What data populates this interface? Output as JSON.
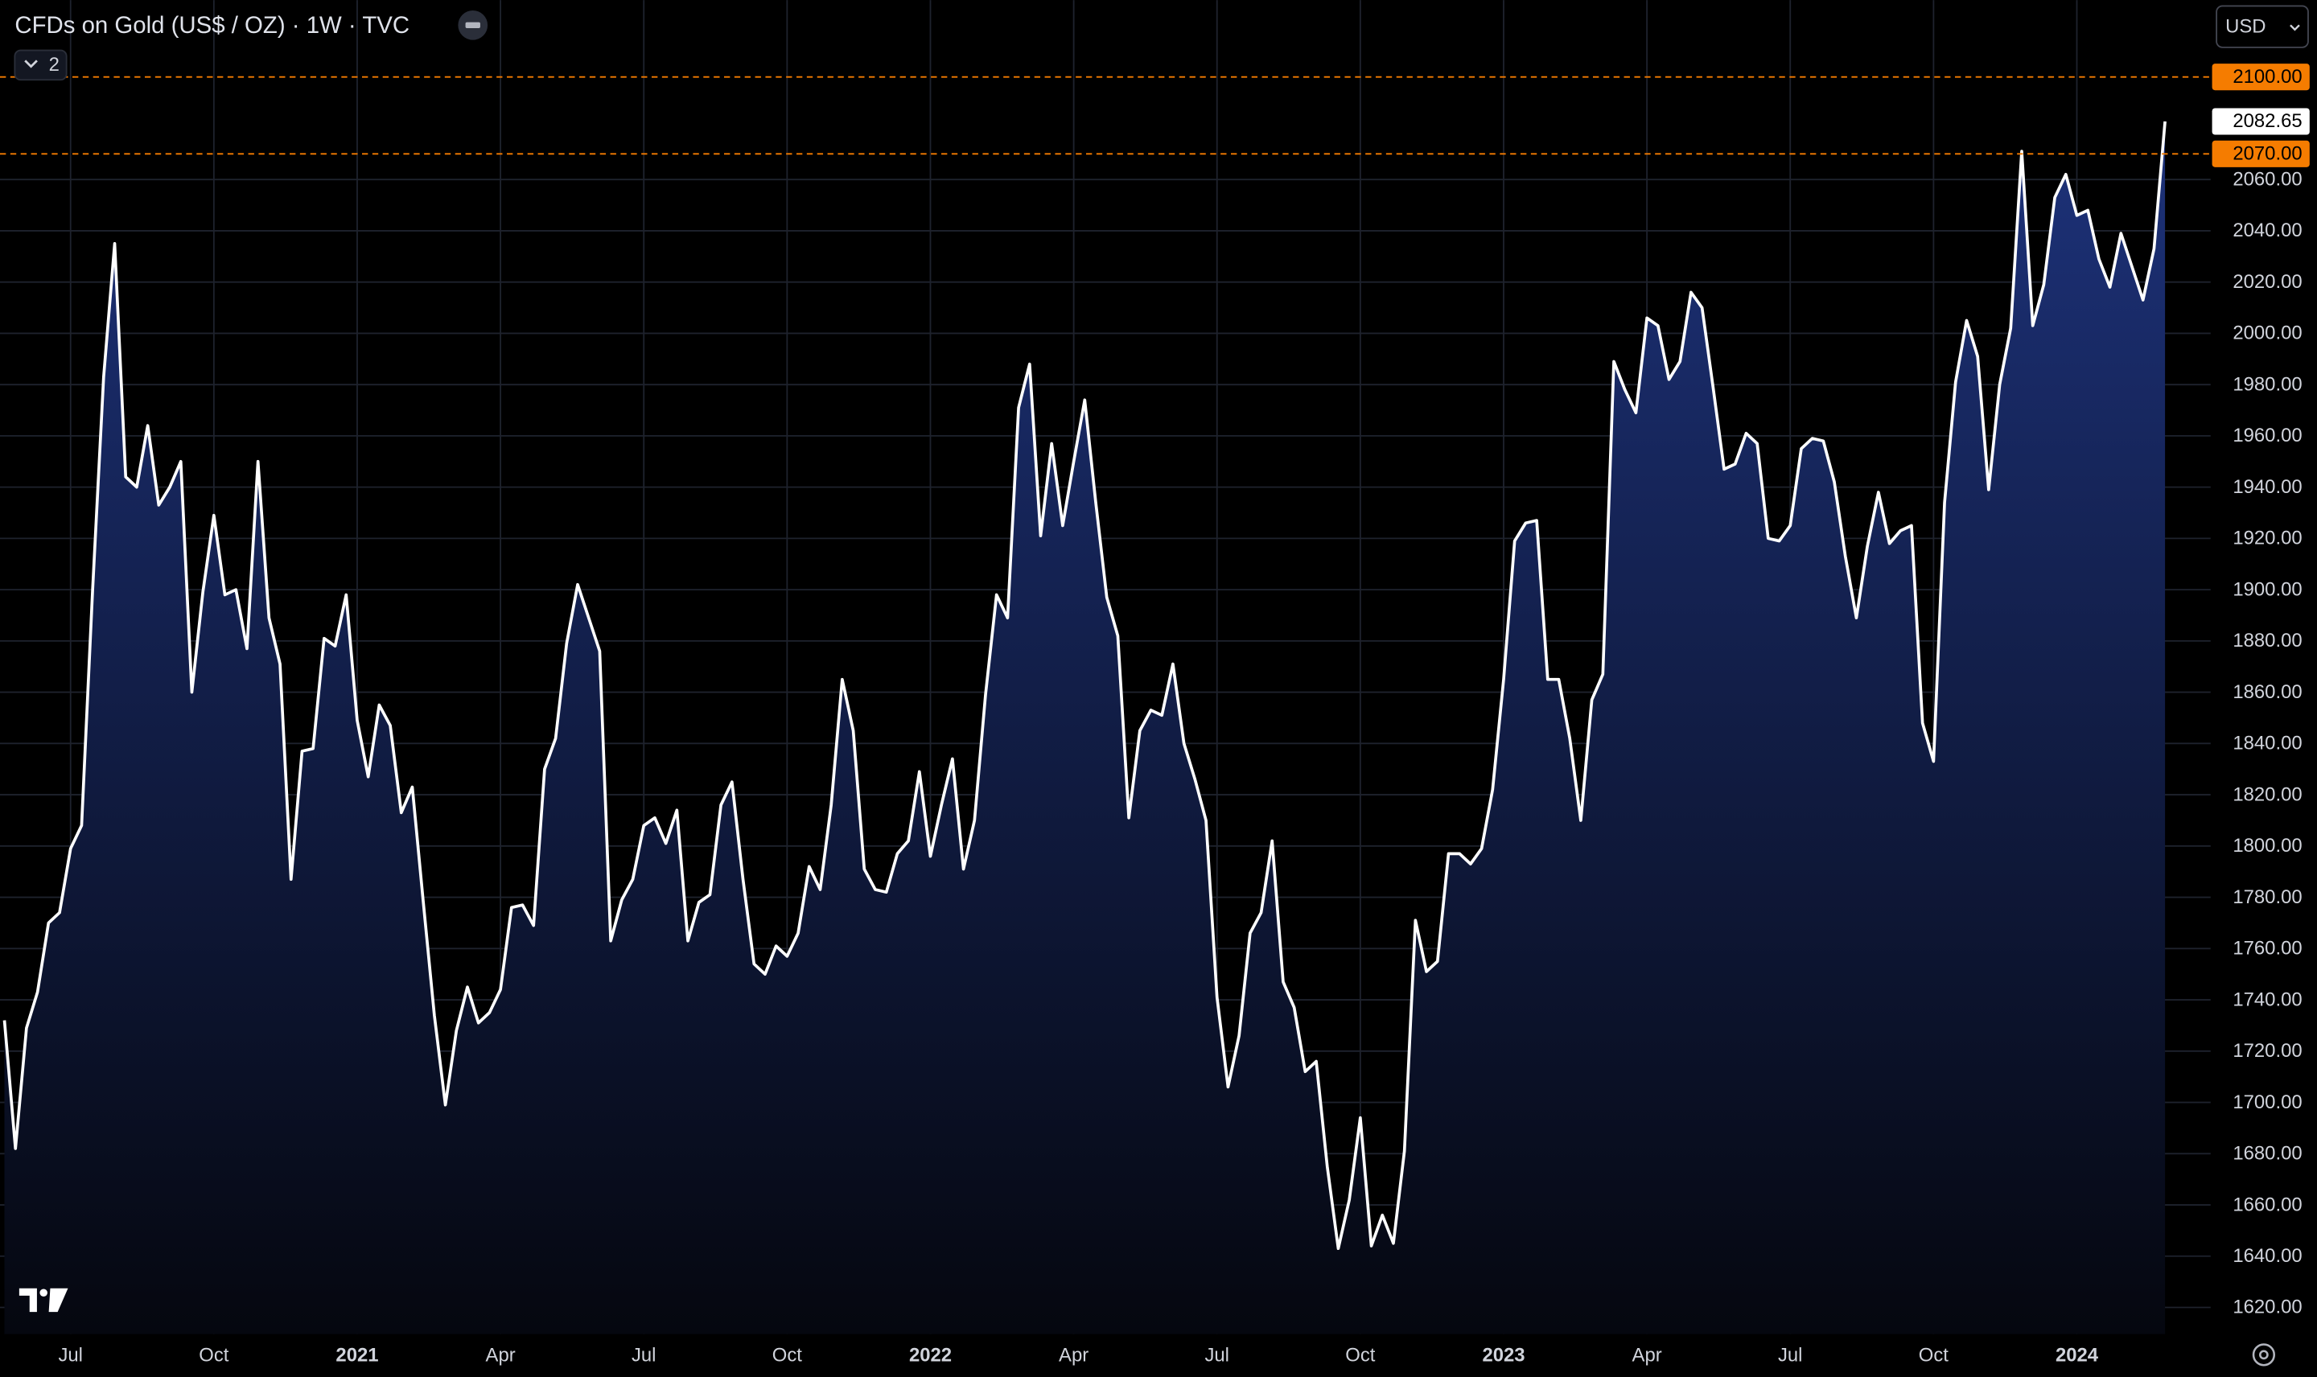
{
  "chart_data": {
    "type": "area",
    "title": "CFDs on Gold (US$ / OZ) · 1W · TVC",
    "indicator_count": 2,
    "currency": "USD",
    "color": "#ffffff",
    "fill_color": "#1d327a",
    "grid": true,
    "categories": [
      null,
      null,
      null,
      null,
      null,
      null,
      "Jul",
      null,
      null,
      null,
      null,
      null,
      null,
      null,
      null,
      null,
      null,
      null,
      null,
      "Oct",
      null,
      null,
      null,
      null,
      null,
      null,
      null,
      null,
      null,
      null,
      null,
      null,
      "2021",
      null,
      null,
      null,
      null,
      null,
      null,
      null,
      null,
      null,
      null,
      null,
      null,
      "Apr",
      null,
      null,
      null,
      null,
      null,
      null,
      null,
      null,
      null,
      null,
      null,
      null,
      "Jul",
      null,
      null,
      null,
      null,
      null,
      null,
      null,
      null,
      null,
      null,
      null,
      null,
      "Oct",
      null,
      null,
      null,
      null,
      null,
      null,
      null,
      null,
      null,
      null,
      null,
      null,
      "2022",
      null,
      null,
      null,
      null,
      null,
      null,
      null,
      null,
      null,
      null,
      null,
      null,
      "Apr",
      null,
      null,
      null,
      null,
      null,
      null,
      null,
      null,
      null,
      null,
      null,
      null,
      "Jul",
      null,
      null,
      null,
      null,
      null,
      null,
      null,
      null,
      null,
      null,
      null,
      null,
      "Oct",
      null,
      null,
      null,
      null,
      null,
      null,
      null,
      null,
      null,
      null,
      null,
      null,
      "2023",
      null,
      null,
      null,
      null,
      null,
      null,
      null,
      null,
      null,
      null,
      null,
      null,
      "Apr",
      null,
      null,
      null,
      null,
      null,
      null,
      null,
      null,
      null,
      null,
      null,
      null,
      "Jul",
      null,
      null,
      null,
      null,
      null,
      null,
      null,
      null,
      null,
      null,
      null,
      null,
      "Oct",
      null,
      null,
      null,
      null,
      null,
      null,
      null,
      null,
      null,
      null,
      null,
      null,
      "2024",
      null,
      null,
      null,
      null,
      null,
      null,
      null,
      null
    ],
    "values": [
      1732,
      1682,
      1729,
      1743,
      1770,
      1774,
      1799,
      1808,
      1900,
      1983,
      2035,
      1944,
      1940,
      1964,
      1933,
      1940,
      1950,
      1860,
      1899,
      1929,
      1898,
      1900,
      1877,
      1950,
      1889,
      1871,
      1787,
      1837,
      1838,
      1881,
      1878,
      1898,
      1849,
      1827,
      1855,
      1847,
      1813,
      1823,
      1778,
      1734,
      1699,
      1728,
      1745,
      1731,
      1735,
      1744,
      1776,
      1777,
      1769,
      1830,
      1842,
      1879,
      1902,
      1889,
      1876,
      1763,
      1779,
      1787,
      1808,
      1811,
      1801,
      1814,
      1763,
      1778,
      1781,
      1816,
      1825,
      1787,
      1754,
      1750,
      1761,
      1757,
      1766,
      1792,
      1783,
      1816,
      1865,
      1845,
      1791,
      1783,
      1782,
      1797,
      1802,
      1829,
      1796,
      1816,
      1834,
      1791,
      1810,
      1859,
      1898,
      1889,
      1971,
      1988,
      1921,
      1957,
      1925,
      1950,
      1974,
      1934,
      1897,
      1882,
      1811,
      1845,
      1853,
      1851,
      1871,
      1840,
      1826,
      1810,
      1741,
      1706,
      1726,
      1766,
      1774,
      1802,
      1747,
      1737,
      1712,
      1716,
      1675,
      1643,
      1662,
      1694,
      1644,
      1656,
      1645,
      1681,
      1771,
      1751,
      1755,
      1797,
      1797,
      1793,
      1799,
      1822,
      1865,
      1919,
      1926,
      1927,
      1865,
      1865,
      1842,
      1810,
      1857,
      1867,
      1989,
      1978,
      1969,
      2006,
      2003,
      1982,
      1989,
      2016,
      2010,
      1979,
      1947,
      1949,
      1961,
      1957,
      1920,
      1919,
      1925,
      1955,
      1959,
      1958,
      1942,
      1913,
      1889,
      1917,
      1938,
      1918,
      1923,
      1925,
      1848,
      1833,
      1934,
      1981,
      2005,
      1991,
      1939,
      1980,
      2002,
      2071,
      2003,
      2019,
      2053,
      2062,
      2046,
      2048,
      2029,
      2018,
      2039,
      2026,
      2013,
      2033,
      2082.65
    ],
    "ylim": [
      1609.6,
      2130
    ],
    "yticks": [
      {
        "value": 1620,
        "label": "1620.00"
      },
      {
        "value": 1640,
        "label": "1640.00"
      },
      {
        "value": 1660,
        "label": "1660.00"
      },
      {
        "value": 1680,
        "label": "1680.00"
      },
      {
        "value": 1700,
        "label": "1700.00"
      },
      {
        "value": 1720,
        "label": "1720.00"
      },
      {
        "value": 1740,
        "label": "1740.00"
      },
      {
        "value": 1760,
        "label": "1760.00"
      },
      {
        "value": 1780,
        "label": "1780.00"
      },
      {
        "value": 1800,
        "label": "1800.00"
      },
      {
        "value": 1820,
        "label": "1820.00"
      },
      {
        "value": 1840,
        "label": "1840.00"
      },
      {
        "value": 1860,
        "label": "1860.00"
      },
      {
        "value": 1880,
        "label": "1880.00"
      },
      {
        "value": 1900,
        "label": "1900.00"
      },
      {
        "value": 1920,
        "label": "1920.00"
      },
      {
        "value": 1940,
        "label": "1940.00"
      },
      {
        "value": 1960,
        "label": "1960.00"
      },
      {
        "value": 1980,
        "label": "1980.00"
      },
      {
        "value": 2000,
        "label": "2000.00"
      },
      {
        "value": 2020,
        "label": "2020.00"
      },
      {
        "value": 2040,
        "label": "2040.00"
      },
      {
        "value": 2060,
        "label": "2060.00"
      }
    ],
    "price_lines": [
      {
        "value": 2100,
        "label": "2100.00",
        "color": "#f57c00"
      },
      {
        "value": 2070,
        "label": "2070.00",
        "color": "#f57c00"
      }
    ]
  }
}
